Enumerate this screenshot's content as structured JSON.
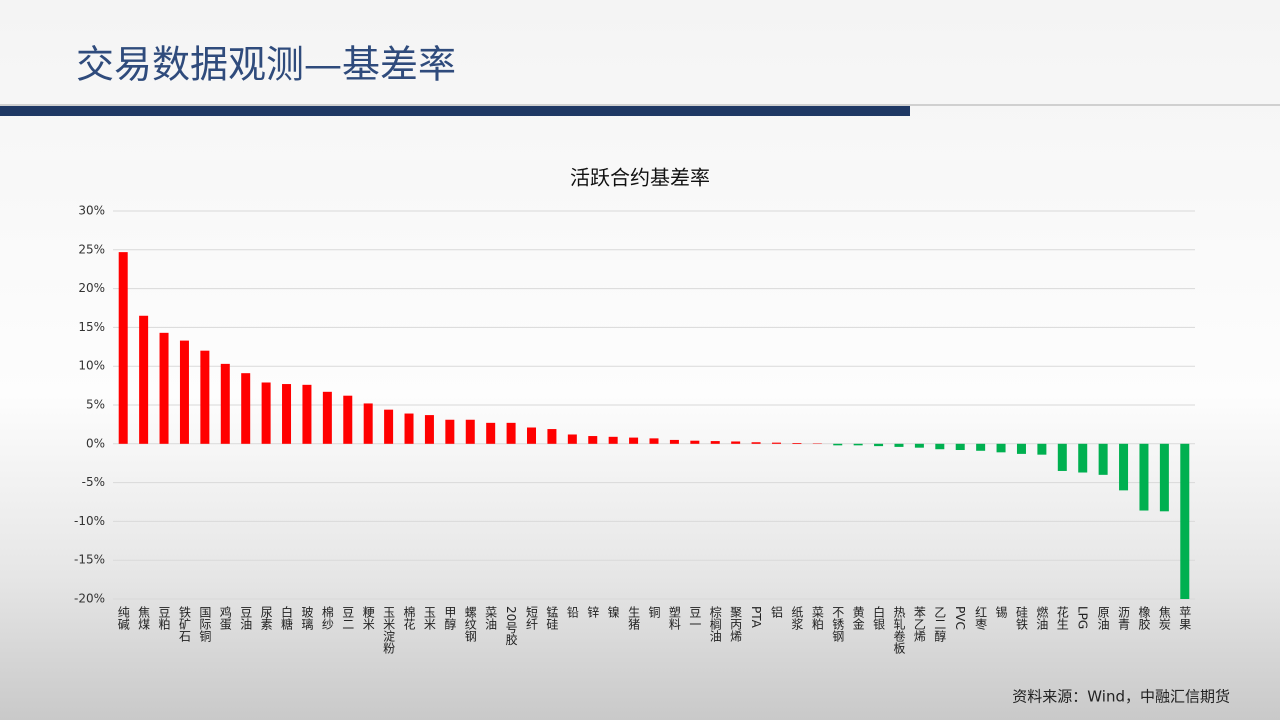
{
  "slide": {
    "title": "交易数据观测—基差率",
    "source": "资料来源：Wind，中融汇信期货"
  },
  "chart_data": {
    "type": "bar",
    "title": "活跃合约基差率",
    "categories": [
      "纯碱",
      "焦煤",
      "豆粕",
      "铁矿石",
      "国际铜",
      "鸡蛋",
      "豆油",
      "尿素",
      "白糖",
      "玻璃",
      "棉纱",
      "豆二",
      "粳米",
      "玉米淀粉",
      "棉花",
      "玉米",
      "甲醇",
      "螺纹钢",
      "菜油",
      "20号胶",
      "短纤",
      "锰硅",
      "铅",
      "锌",
      "镍",
      "生猪",
      "铜",
      "塑料",
      "豆一",
      "棕榈油",
      "聚丙烯",
      "PTA",
      "铝",
      "纸浆",
      "菜粕",
      "不锈钢",
      "黄金",
      "白银",
      "热轧卷板",
      "苯乙烯",
      "乙二醇",
      "PVC",
      "红枣",
      "锡",
      "硅铁",
      "燃油",
      "花生",
      "LPG",
      "原油",
      "沥青",
      "橡胶",
      "焦炭",
      "苹果"
    ],
    "values": [
      24.7,
      16.5,
      14.3,
      13.3,
      12.0,
      10.3,
      9.1,
      7.9,
      7.7,
      7.6,
      6.7,
      6.2,
      5.2,
      4.4,
      3.9,
      3.7,
      3.1,
      3.1,
      2.7,
      2.7,
      2.1,
      1.9,
      1.2,
      1.0,
      0.9,
      0.8,
      0.7,
      0.5,
      0.4,
      0.35,
      0.3,
      0.2,
      0.15,
      0.1,
      0.05,
      -0.2,
      -0.2,
      -0.3,
      -0.4,
      -0.5,
      -0.7,
      -0.8,
      -0.9,
      -1.1,
      -1.3,
      -1.4,
      -3.5,
      -3.7,
      -4.0,
      -6.0,
      -8.6,
      -8.7,
      -20.0
    ],
    "positive_color": "#ff0000",
    "negative_color": "#00b050",
    "ylim": [
      -20,
      30
    ],
    "yticks": [
      {
        "value": -20,
        "label": "-20%"
      },
      {
        "value": -15,
        "label": "-15%"
      },
      {
        "value": -10,
        "label": "-10%"
      },
      {
        "value": -5,
        "label": "-5%"
      },
      {
        "value": 0,
        "label": "0%"
      },
      {
        "value": 5,
        "label": "5%"
      },
      {
        "value": 10,
        "label": "10%"
      },
      {
        "value": 15,
        "label": "15%"
      },
      {
        "value": 20,
        "label": "20%"
      },
      {
        "value": 25,
        "label": "25%"
      },
      {
        "value": 30,
        "label": "30%"
      }
    ],
    "grid": true
  }
}
